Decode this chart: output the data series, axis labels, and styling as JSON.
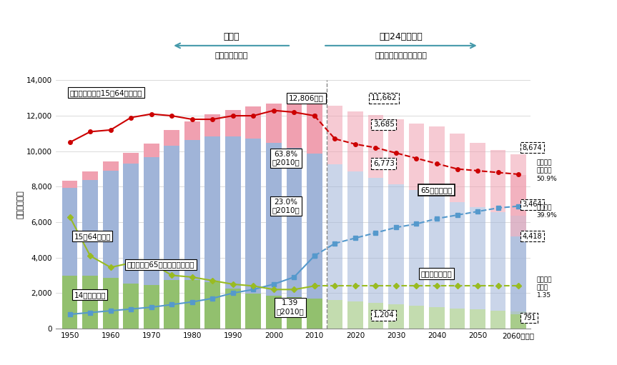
{
  "years_hist": [
    1950,
    1955,
    1960,
    1965,
    1970,
    1975,
    1980,
    1985,
    1990,
    1995,
    2000,
    2005,
    2010
  ],
  "years_proj": [
    2015,
    2020,
    2025,
    2030,
    2035,
    2040,
    2045,
    2050,
    2055,
    2060
  ],
  "p014_h": [
    2979,
    2979,
    2843,
    2553,
    2468,
    2722,
    2751,
    2603,
    2249,
    1990,
    1847,
    1752,
    1680
  ],
  "p1564_h": [
    4960,
    5387,
    6065,
    6744,
    7212,
    7581,
    7883,
    8251,
    8590,
    8717,
    8638,
    8442,
    8174
  ],
  "p65_h": [
    412,
    479,
    535,
    625,
    739,
    887,
    1065,
    1247,
    1489,
    1826,
    2187,
    2576,
    2948
  ],
  "p014_p": [
    1595,
    1507,
    1439,
    1352,
    1266,
    1204,
    1130,
    1073,
    1010,
    951,
    791
  ],
  "p1564_p": [
    7682,
    7341,
    7057,
    6773,
    6558,
    6343,
    5985,
    5787,
    5534,
    5418,
    4418
  ],
  "p65_p": [
    3283,
    3395,
    3540,
    3685,
    3741,
    3868,
    3868,
    3626,
    3529,
    3464,
    3464
  ],
  "years_proj_full": [
    2015,
    2020,
    2025,
    2030,
    2035,
    2040,
    2045,
    2050,
    2055,
    2060,
    2060
  ],
  "red_y_h": [
    10500,
    11100,
    11200,
    11900,
    12100,
    12000,
    11800,
    11800,
    12000,
    12000,
    12300,
    12200,
    12000
  ],
  "red_y_p": [
    12000,
    10700,
    10400,
    10200,
    9900,
    9600,
    9300,
    9000,
    8900,
    8800,
    8700
  ],
  "red_x_p": [
    2010,
    2015,
    2020,
    2025,
    2030,
    2035,
    2040,
    2045,
    2050,
    2055,
    2060
  ],
  "blue_y_h": [
    800,
    900,
    1000,
    1100,
    1200,
    1350,
    1500,
    1700,
    2000,
    2200,
    2500,
    2900,
    4100
  ],
  "blue_y_p": [
    4100,
    4800,
    5100,
    5400,
    5700,
    5900,
    6200,
    6400,
    6600,
    6800,
    6900
  ],
  "blue_x_p": [
    2010,
    2015,
    2020,
    2025,
    2030,
    2035,
    2040,
    2045,
    2050,
    2055,
    2060
  ],
  "green_y_h": [
    6300,
    4100,
    3450,
    3700,
    3700,
    3000,
    2900,
    2700,
    2500,
    2400,
    2200,
    2200,
    2400
  ],
  "green_y_p": [
    2400,
    2400,
    2400,
    2400,
    2400,
    2400,
    2400,
    2400,
    2400,
    2400,
    2400
  ],
  "green_x_p": [
    2010,
    2015,
    2020,
    2025,
    2030,
    2035,
    2040,
    2045,
    2050,
    2055,
    2060
  ],
  "color_green_bar": "#92c06e",
  "color_blue_bar": "#a0b4d8",
  "color_pink_bar": "#f0a0b0",
  "color_red_line": "#cc0000",
  "color_blue_line": "#5599cc",
  "color_green_line": "#99bb22",
  "color_arrow_bg": "#c0e8f0",
  "background": "#ffffff",
  "yticks": [
    0,
    2000,
    4000,
    6000,
    8000,
    10000,
    12000,
    14000
  ],
  "xticks_hist": [
    1950,
    1960,
    1970,
    1980,
    1990,
    2000,
    2010
  ],
  "xticks_proj": [
    2020,
    2030,
    2040,
    2050,
    2060
  ]
}
